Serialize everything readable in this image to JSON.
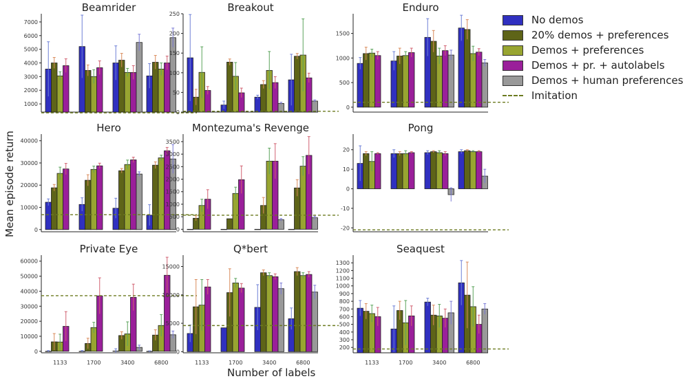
{
  "figure": {
    "ylabel": "Mean episode return",
    "xlabel": "Number of labels"
  },
  "legend": [
    {
      "label": "No demos",
      "color": "#3030c0"
    },
    {
      "label": "20% demos + preferences",
      "color": "#5e6418"
    },
    {
      "label": "Demos + preferences",
      "color": "#98a531"
    },
    {
      "label": "Demos + pr. + autolabels",
      "color": "#9a1f9a"
    },
    {
      "label": "Demos + human preferences",
      "color": "#999999"
    },
    {
      "label": "Imitation",
      "color": "#6b7a1f",
      "style": "dashed"
    }
  ],
  "chart_data": [
    {
      "type": "bar",
      "title": "Beamrider",
      "categories": [
        "1133",
        "1700",
        "3400",
        "6800"
      ],
      "ylim": [
        400,
        7600
      ],
      "yticks": [
        1000,
        2000,
        3000,
        4000,
        5000,
        6000,
        7000
      ],
      "imitation": 350,
      "series": [
        {
          "name": "No demos",
          "values": [
            3550,
            5200,
            4000,
            3050
          ],
          "err": [
            2000,
            2300,
            1250,
            900
          ]
        },
        {
          "name": "20% demos + preferences",
          "values": [
            4000,
            3450,
            4200,
            4050
          ],
          "err": [
            400,
            400,
            500,
            500
          ]
        },
        {
          "name": "Demos + preferences",
          "values": [
            3050,
            3000,
            3300,
            3550
          ],
          "err": [
            300,
            500,
            300,
            450
          ]
        },
        {
          "name": "Demos + pr. + autolabels",
          "values": [
            3800,
            3650,
            3300,
            4000
          ],
          "err": [
            500,
            500,
            500,
            500
          ]
        },
        {
          "name": "Demos + human preferences",
          "values": [
            null,
            null,
            5500,
            5850
          ],
          "err": [
            0,
            0,
            600,
            700
          ]
        }
      ]
    },
    {
      "type": "bar",
      "title": "Breakout",
      "categories": [
        "1133",
        "1700",
        "3400",
        "6800"
      ],
      "ylim": [
        0,
        250
      ],
      "yticks": [
        0,
        50,
        100,
        150,
        200,
        250
      ],
      "imitation": 2,
      "series": [
        {
          "name": "No demos",
          "values": [
            138,
            18,
            38,
            82
          ],
          "err": [
            110,
            10,
            5,
            65
          ]
        },
        {
          "name": "20% demos + preferences",
          "values": [
            38,
            127,
            70,
            142
          ],
          "err": [
            20,
            8,
            10,
            7
          ]
        },
        {
          "name": "Demos + preferences",
          "values": [
            101,
            91,
            106,
            145
          ],
          "err": [
            65,
            35,
            48,
            92
          ]
        },
        {
          "name": "Demos + pr. + autolabels",
          "values": [
            55,
            49,
            75,
            87
          ],
          "err": [
            10,
            12,
            15,
            12
          ]
        },
        {
          "name": "Demos + human preferences",
          "values": [
            null,
            null,
            22,
            28
          ],
          "err": [
            0,
            0,
            3,
            3
          ]
        }
      ]
    },
    {
      "type": "bar",
      "title": "Enduro",
      "categories": [
        "1133",
        "1700",
        "3400",
        "6800"
      ],
      "ylim": [
        -100,
        1900
      ],
      "yticks": [
        0,
        500,
        1000,
        1500
      ],
      "imitation": 100,
      "series": [
        {
          "name": "No demos",
          "values": [
            890,
            940,
            1420,
            1610
          ],
          "err": [
            120,
            190,
            380,
            260
          ]
        },
        {
          "name": "20% demos + preferences",
          "values": [
            1090,
            1040,
            1340,
            1580
          ],
          "err": [
            130,
            160,
            220,
            200
          ]
        },
        {
          "name": "Demos + preferences",
          "values": [
            1100,
            1050,
            1040,
            1090
          ],
          "err": [
            80,
            80,
            160,
            150
          ]
        },
        {
          "name": "Demos + pr. + autolabels",
          "values": [
            1050,
            1110,
            1150,
            1120
          ],
          "err": [
            80,
            90,
            100,
            70
          ]
        },
        {
          "name": "Demos + human preferences",
          "values": [
            null,
            null,
            1060,
            900
          ],
          "err": [
            0,
            0,
            100,
            70
          ]
        }
      ]
    },
    {
      "type": "bar",
      "title": "Hero",
      "categories": [
        "1133",
        "1700",
        "3400",
        "6800"
      ],
      "ylim": [
        -1000,
        43000
      ],
      "yticks": [
        0,
        10000,
        20000,
        30000,
        40000
      ],
      "imitation": 6700,
      "series": [
        {
          "name": "No demos",
          "values": [
            12300,
            11300,
            9600,
            6500
          ],
          "err": [
            1500,
            3000,
            4500,
            4700
          ]
        },
        {
          "name": "20% demos + preferences",
          "values": [
            18800,
            22200,
            26500,
            29000
          ],
          "err": [
            1500,
            2500,
            1000,
            1500
          ]
        },
        {
          "name": "Demos + preferences",
          "values": [
            25300,
            27100,
            29300,
            32300
          ],
          "err": [
            2800,
            1500,
            2000,
            1200
          ]
        },
        {
          "name": "Demos + pr. + autolabels",
          "values": [
            27300,
            28700,
            31400,
            35500
          ],
          "err": [
            2500,
            1200,
            1200,
            1500
          ]
        },
        {
          "name": "Demos + human preferences",
          "values": [
            null,
            null,
            25000,
            31800
          ],
          "err": [
            0,
            0,
            1000,
            6500
          ]
        }
      ]
    },
    {
      "type": "bar",
      "title": "Montezuma's Revenge",
      "categories": [
        "1133",
        "1700",
        "3400",
        "6800"
      ],
      "ylim": [
        -100,
        3800
      ],
      "yticks": [
        0,
        500,
        1000,
        1500,
        2000,
        2500,
        3000,
        3500
      ],
      "imitation": 560,
      "series": [
        {
          "name": "No demos",
          "values": [
            0,
            0,
            0,
            0
          ],
          "err": [
            0,
            0,
            0,
            0
          ]
        },
        {
          "name": "20% demos + preferences",
          "values": [
            440,
            420,
            950,
            1650
          ],
          "err": [
            100,
            0,
            320,
            330
          ]
        },
        {
          "name": "Demos + preferences",
          "values": [
            950,
            1430,
            2720,
            2520
          ],
          "err": [
            250,
            250,
            520,
            380
          ]
        },
        {
          "name": "Demos + pr. + autolabels",
          "values": [
            1200,
            1980,
            2720,
            2950
          ],
          "err": [
            380,
            550,
            700,
            750
          ]
        },
        {
          "name": "Demos + human preferences",
          "values": [
            null,
            null,
            380,
            460
          ],
          "err": [
            0,
            0,
            50,
            60
          ]
        }
      ]
    },
    {
      "type": "bar",
      "title": "Pong",
      "categories": [
        "1133",
        "1700",
        "3400",
        "6800"
      ],
      "ylim": [
        -22,
        28
      ],
      "yticks": [
        -20,
        -10,
        0,
        10,
        20
      ],
      "imitation": -21,
      "series": [
        {
          "name": "No demos",
          "values": [
            13,
            18,
            18.5,
            19
          ],
          "err": [
            9,
            2,
            1,
            1
          ]
        },
        {
          "name": "20% demos + preferences",
          "values": [
            18,
            18,
            19,
            19.5
          ],
          "err": [
            1,
            1,
            0.5,
            0.5
          ]
        },
        {
          "name": "Demos + preferences",
          "values": [
            14,
            18,
            18.5,
            19
          ],
          "err": [
            5,
            1.5,
            1,
            0.5
          ]
        },
        {
          "name": "Demos + pr. + autolabels",
          "values": [
            18,
            18.5,
            18,
            19
          ],
          "err": [
            0.5,
            0.5,
            1,
            0.5
          ]
        },
        {
          "name": "Demos + human preferences",
          "values": [
            null,
            null,
            -3,
            6.5
          ],
          "err": [
            0,
            0,
            3.5,
            3.5
          ]
        }
      ]
    },
    {
      "type": "bar",
      "title": "Private Eye",
      "categories": [
        "1133",
        "1700",
        "3400",
        "6800"
      ],
      "ylim": [
        -1000,
        64000
      ],
      "yticks": [
        0,
        10000,
        20000,
        30000,
        40000,
        50000,
        60000
      ],
      "imitation": 37000,
      "series": [
        {
          "name": "No demos",
          "values": [
            0,
            0,
            200,
            0
          ],
          "err": [
            500,
            500,
            1500,
            300
          ]
        },
        {
          "name": "20% demos + preferences",
          "values": [
            6300,
            5200,
            10500,
            10800
          ],
          "err": [
            5500,
            3500,
            2500,
            3500
          ]
        },
        {
          "name": "Demos + preferences",
          "values": [
            6200,
            15800,
            11600,
            17200
          ],
          "err": [
            5200,
            3500,
            8000,
            7200
          ]
        },
        {
          "name": "Demos + pr. + autolabels",
          "values": [
            16600,
            36900,
            35900,
            50600
          ],
          "err": [
            9800,
            12000,
            8800,
            12000
          ]
        },
        {
          "name": "Demos + human preferences",
          "values": [
            null,
            null,
            2600,
            11000
          ],
          "err": [
            0,
            0,
            1500,
            2500
          ]
        }
      ]
    },
    {
      "type": "bar",
      "title": "Q*bert",
      "categories": [
        "1133",
        "1700",
        "3400",
        "6800"
      ],
      "ylim": [
        -200,
        17000
      ],
      "yticks": [
        0,
        5000,
        10000,
        15000
      ],
      "imitation": 4600,
      "series": [
        {
          "name": "No demos",
          "values": [
            3200,
            4200,
            7800,
            5800
          ],
          "err": [
            1500,
            0,
            4000,
            1900
          ]
        },
        {
          "name": "20% demos + preferences",
          "values": [
            7900,
            10400,
            13900,
            14100
          ],
          "err": [
            4800,
            4200,
            500,
            700
          ]
        },
        {
          "name": "Demos + preferences",
          "values": [
            8200,
            12100,
            13400,
            13400
          ],
          "err": [
            4500,
            800,
            500,
            500
          ]
        },
        {
          "name": "Demos + pr. + autolabels",
          "values": [
            11400,
            11200,
            13200,
            13600
          ],
          "err": [
            1300,
            800,
            500,
            500
          ]
        },
        {
          "name": "Demos + human preferences",
          "values": [
            null,
            null,
            11100,
            10500
          ],
          "err": [
            0,
            0,
            1000,
            1200
          ]
        }
      ]
    },
    {
      "type": "bar",
      "title": "Seaquest",
      "categories": [
        "1133",
        "1700",
        "3400",
        "6800"
      ],
      "ylim": [
        130,
        1400
      ],
      "yticks": [
        200,
        300,
        400,
        500,
        600,
        700,
        800,
        900,
        1000,
        1100,
        1200,
        1300
      ],
      "imitation": 180,
      "series": [
        {
          "name": "No demos",
          "values": [
            710,
            440,
            790,
            1040
          ],
          "err": [
            100,
            300,
            50,
            290
          ]
        },
        {
          "name": "20% demos + preferences",
          "values": [
            670,
            680,
            620,
            880
          ],
          "err": [
            100,
            120,
            130,
            430
          ]
        },
        {
          "name": "Demos + preferences",
          "values": [
            640,
            520,
            610,
            730
          ],
          "err": [
            110,
            290,
            150,
            260
          ]
        },
        {
          "name": "Demos + pr. + autolabels",
          "values": [
            600,
            610,
            580,
            500
          ],
          "err": [
            120,
            130,
            120,
            120
          ]
        },
        {
          "name": "Demos + human preferences",
          "values": [
            null,
            null,
            650,
            700
          ],
          "err": [
            0,
            0,
            150,
            70
          ]
        }
      ]
    }
  ]
}
